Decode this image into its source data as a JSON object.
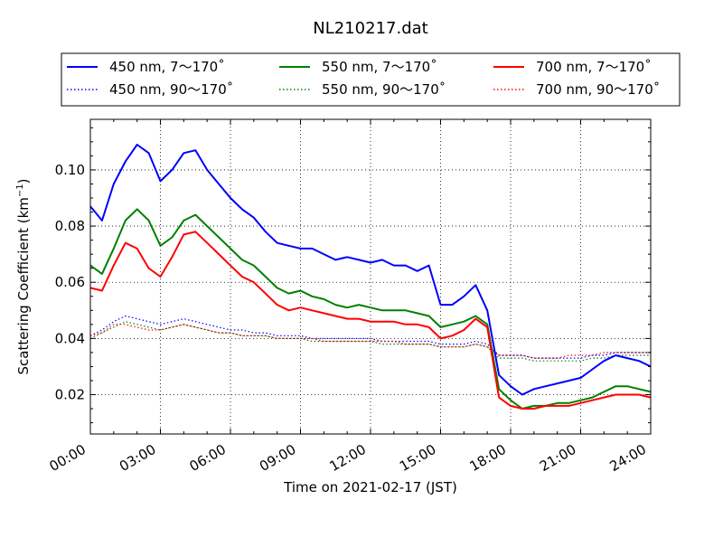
{
  "chart_data": {
    "type": "line",
    "title": "NL210217.dat",
    "xlabel": "Time on 2021-02-17 (JST)",
    "ylabel_main": "Scattering Coefficient (km",
    "ylabel_sup": "−1",
    "ylabel_close": ")",
    "xlim": [
      0,
      24
    ],
    "ylim": [
      0.006,
      0.118
    ],
    "grid": true,
    "legend_position": "top",
    "x_ticks": [
      0,
      3,
      6,
      9,
      12,
      15,
      18,
      21,
      24
    ],
    "x_tick_labels": [
      "00:00",
      "03:00",
      "06:00",
      "09:00",
      "12:00",
      "15:00",
      "18:00",
      "21:00",
      "24:00"
    ],
    "y_ticks": [
      0.02,
      0.04,
      0.06,
      0.08,
      0.1
    ],
    "y_tick_labels": [
      "0.02",
      "0.04",
      "0.06",
      "0.08",
      "0.10"
    ],
    "x": [
      0,
      0.5,
      1,
      1.5,
      2,
      2.5,
      3,
      3.5,
      4,
      4.5,
      5,
      5.5,
      6,
      6.5,
      7,
      7.5,
      8,
      8.5,
      9,
      9.5,
      10,
      10.5,
      11,
      11.5,
      12,
      12.5,
      13,
      13.5,
      14,
      14.5,
      15,
      15.5,
      16,
      16.5,
      17,
      17.5,
      18,
      18.5,
      19,
      19.5,
      20,
      20.5,
      21,
      21.5,
      22,
      22.5,
      23,
      23.5,
      24
    ],
    "series": [
      {
        "name": "450 nm, 7～170˚",
        "color": "#0000ff",
        "style": "solid",
        "values": [
          0.087,
          0.082,
          0.095,
          0.103,
          0.109,
          0.106,
          0.096,
          0.1,
          0.106,
          0.107,
          0.1,
          0.095,
          0.09,
          0.086,
          0.083,
          0.078,
          0.074,
          0.073,
          0.072,
          0.072,
          0.07,
          0.068,
          0.069,
          0.068,
          0.067,
          0.068,
          0.066,
          0.066,
          0.064,
          0.066,
          0.052,
          0.052,
          0.055,
          0.059,
          0.05,
          0.027,
          0.023,
          0.02,
          0.022,
          0.023,
          0.024,
          0.025,
          0.026,
          0.029,
          0.032,
          0.034,
          0.033,
          0.032,
          0.03
        ]
      },
      {
        "name": "450 nm, 90～170˚",
        "color": "#0000ff",
        "style": "dotted",
        "values": [
          0.041,
          0.043,
          0.046,
          0.048,
          0.047,
          0.046,
          0.045,
          0.046,
          0.047,
          0.046,
          0.045,
          0.044,
          0.043,
          0.043,
          0.042,
          0.042,
          0.041,
          0.041,
          0.041,
          0.04,
          0.04,
          0.04,
          0.04,
          0.04,
          0.04,
          0.039,
          0.039,
          0.039,
          0.039,
          0.039,
          0.038,
          0.038,
          0.038,
          0.039,
          0.038,
          0.034,
          0.034,
          0.034,
          0.033,
          0.033,
          0.033,
          0.033,
          0.033,
          0.034,
          0.034,
          0.035,
          0.035,
          0.035,
          0.035
        ]
      },
      {
        "name": "550 nm, 7～170˚",
        "color": "#008000",
        "style": "solid",
        "values": [
          0.066,
          0.063,
          0.072,
          0.082,
          0.086,
          0.082,
          0.073,
          0.076,
          0.082,
          0.084,
          0.08,
          0.076,
          0.072,
          0.068,
          0.066,
          0.062,
          0.058,
          0.056,
          0.057,
          0.055,
          0.054,
          0.052,
          0.051,
          0.052,
          0.051,
          0.05,
          0.05,
          0.05,
          0.049,
          0.048,
          0.044,
          0.045,
          0.046,
          0.048,
          0.045,
          0.022,
          0.018,
          0.015,
          0.016,
          0.016,
          0.017,
          0.017,
          0.018,
          0.019,
          0.021,
          0.023,
          0.023,
          0.022,
          0.021
        ]
      },
      {
        "name": "550 nm, 90～170˚",
        "color": "#008000",
        "style": "dotted",
        "values": [
          0.04,
          0.042,
          0.044,
          0.046,
          0.045,
          0.044,
          0.043,
          0.044,
          0.045,
          0.044,
          0.043,
          0.042,
          0.042,
          0.041,
          0.041,
          0.041,
          0.04,
          0.04,
          0.04,
          0.039,
          0.039,
          0.039,
          0.039,
          0.039,
          0.039,
          0.038,
          0.038,
          0.038,
          0.038,
          0.038,
          0.037,
          0.037,
          0.037,
          0.038,
          0.037,
          0.033,
          0.033,
          0.033,
          0.032,
          0.032,
          0.032,
          0.032,
          0.032,
          0.033,
          0.033,
          0.034,
          0.034,
          0.034,
          0.034
        ]
      },
      {
        "name": "700 nm, 7～170˚",
        "color": "#ff0000",
        "style": "solid",
        "values": [
          0.058,
          0.057,
          0.066,
          0.074,
          0.072,
          0.065,
          0.062,
          0.069,
          0.077,
          0.078,
          0.074,
          0.07,
          0.066,
          0.062,
          0.06,
          0.056,
          0.052,
          0.05,
          0.051,
          0.05,
          0.049,
          0.048,
          0.047,
          0.047,
          0.046,
          0.046,
          0.046,
          0.045,
          0.045,
          0.044,
          0.04,
          0.041,
          0.043,
          0.047,
          0.044,
          0.019,
          0.016,
          0.015,
          0.015,
          0.016,
          0.016,
          0.016,
          0.017,
          0.018,
          0.019,
          0.02,
          0.02,
          0.02,
          0.019
        ]
      },
      {
        "name": "700 nm, 90～170˚",
        "color": "#ff0000",
        "style": "dotted",
        "values": [
          0.041,
          0.042,
          0.045,
          0.045,
          0.044,
          0.043,
          0.043,
          0.044,
          0.045,
          0.044,
          0.043,
          0.042,
          0.042,
          0.041,
          0.041,
          0.041,
          0.04,
          0.04,
          0.04,
          0.04,
          0.039,
          0.039,
          0.039,
          0.039,
          0.039,
          0.039,
          0.039,
          0.038,
          0.038,
          0.038,
          0.037,
          0.037,
          0.037,
          0.038,
          0.037,
          0.034,
          0.034,
          0.034,
          0.033,
          0.033,
          0.033,
          0.034,
          0.034,
          0.034,
          0.035,
          0.035,
          0.035,
          0.035,
          0.035
        ]
      }
    ]
  }
}
